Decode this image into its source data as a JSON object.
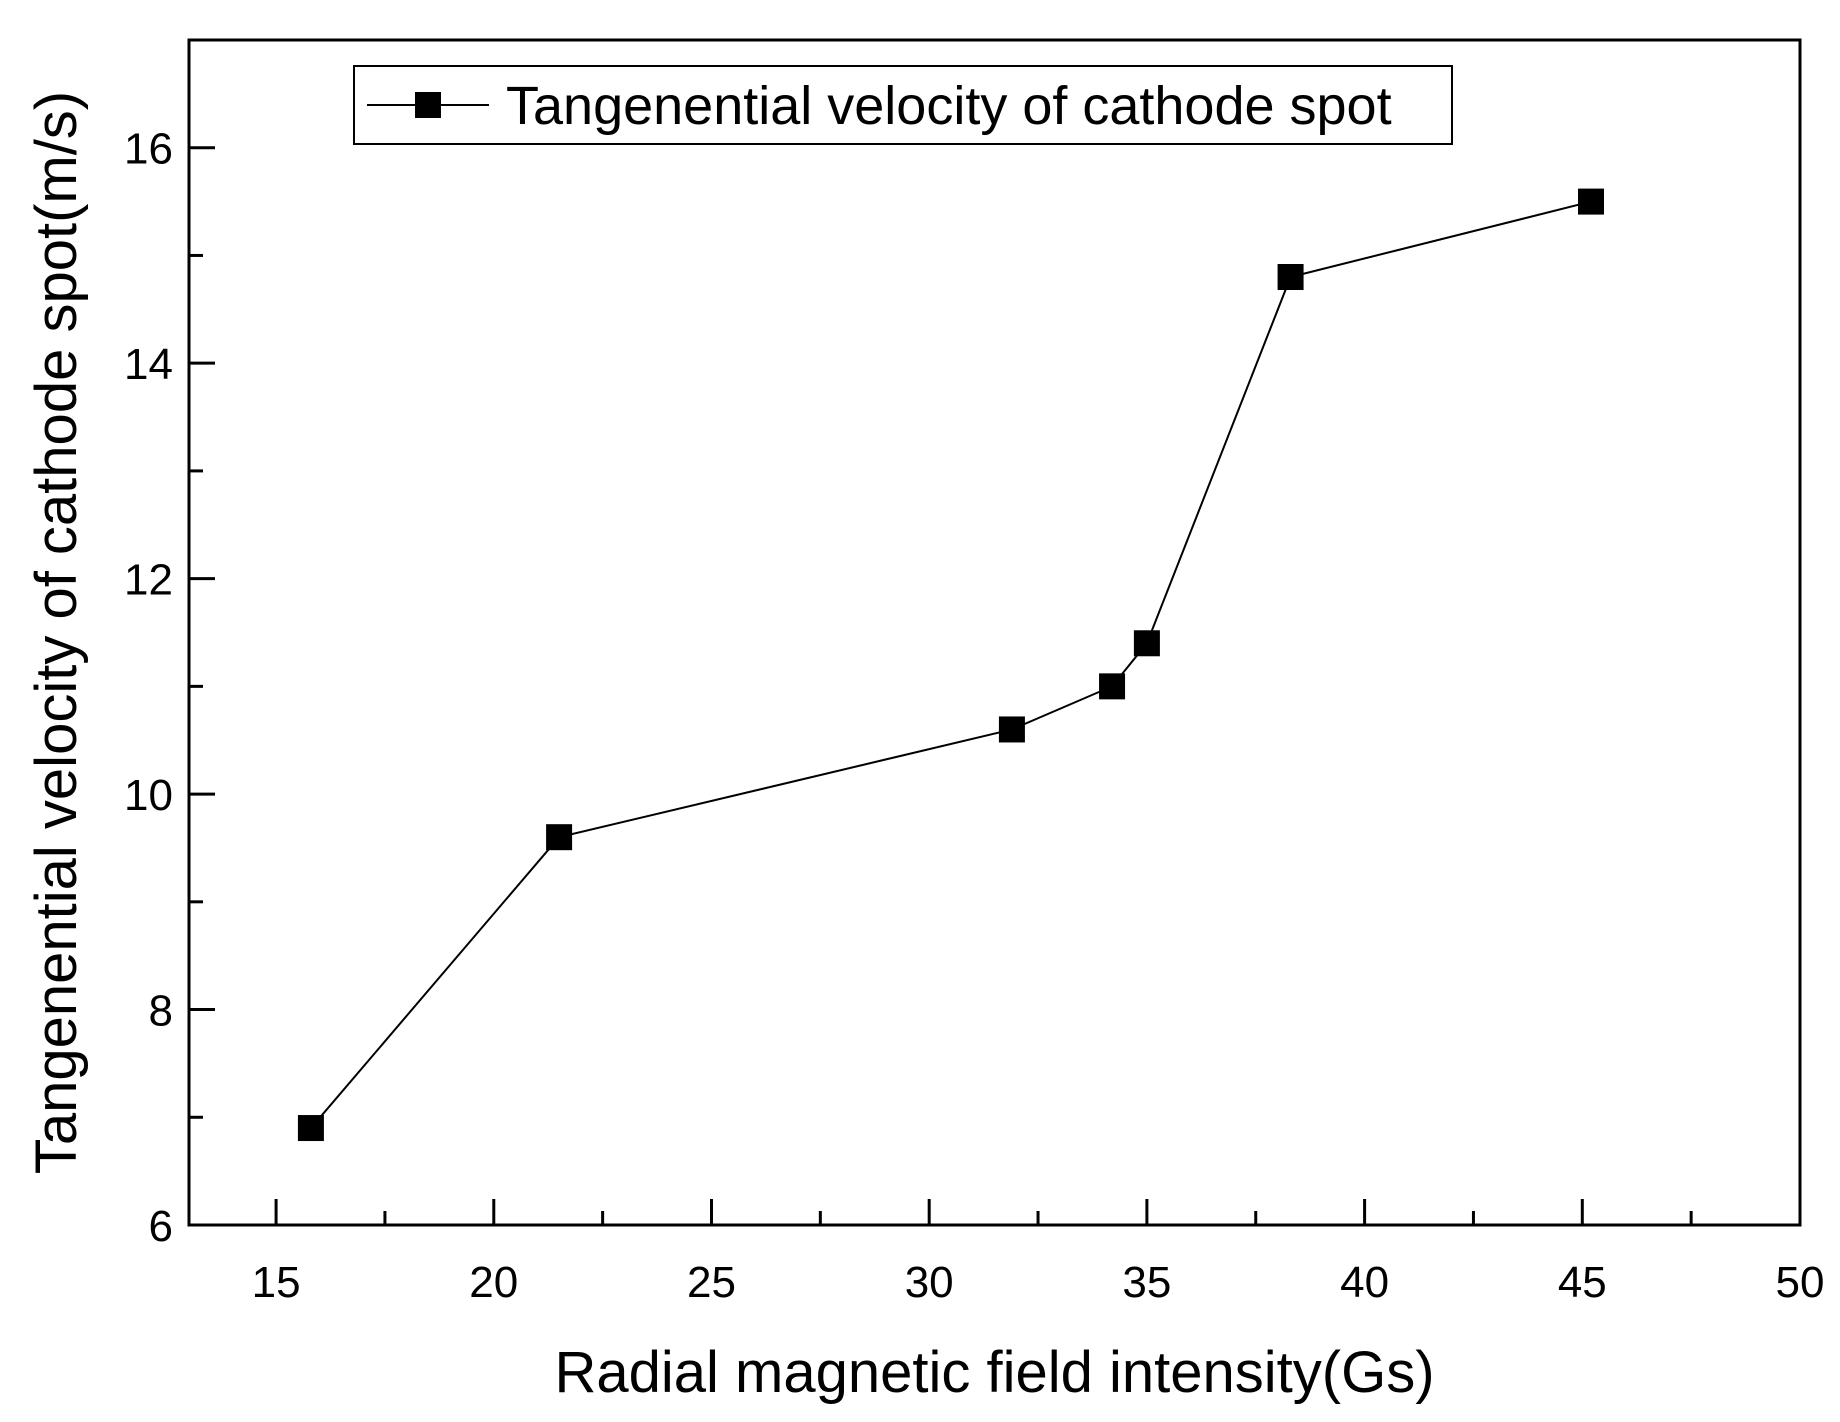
{
  "chart_data": {
    "type": "line",
    "xlabel": "Radial magnetic field intensity(Gs)",
    "ylabel": "Tangenential velocity of cathode spot(m/s)",
    "xlim": [
      13,
      50
    ],
    "ylim": [
      6,
      17
    ],
    "x_major_ticks": [
      15,
      20,
      25,
      30,
      35,
      40,
      45,
      50
    ],
    "x_minor_ticks": [
      17.5,
      22.5,
      27.5,
      32.5,
      37.5,
      42.5,
      47.5
    ],
    "y_major_ticks": [
      6,
      8,
      10,
      12,
      14,
      16
    ],
    "y_minor_ticks": [
      7,
      9,
      11,
      13,
      15
    ],
    "grid": false,
    "legend_position": "top-left",
    "series": [
      {
        "name": "Tangenential velocity of cathode spot",
        "marker": "square",
        "color": "#000000",
        "x": [
          15.8,
          21.5,
          31.9,
          34.2,
          35.0,
          38.3,
          45.2
        ],
        "y": [
          6.9,
          9.6,
          10.6,
          11.0,
          11.4,
          14.8,
          15.5
        ]
      }
    ]
  }
}
